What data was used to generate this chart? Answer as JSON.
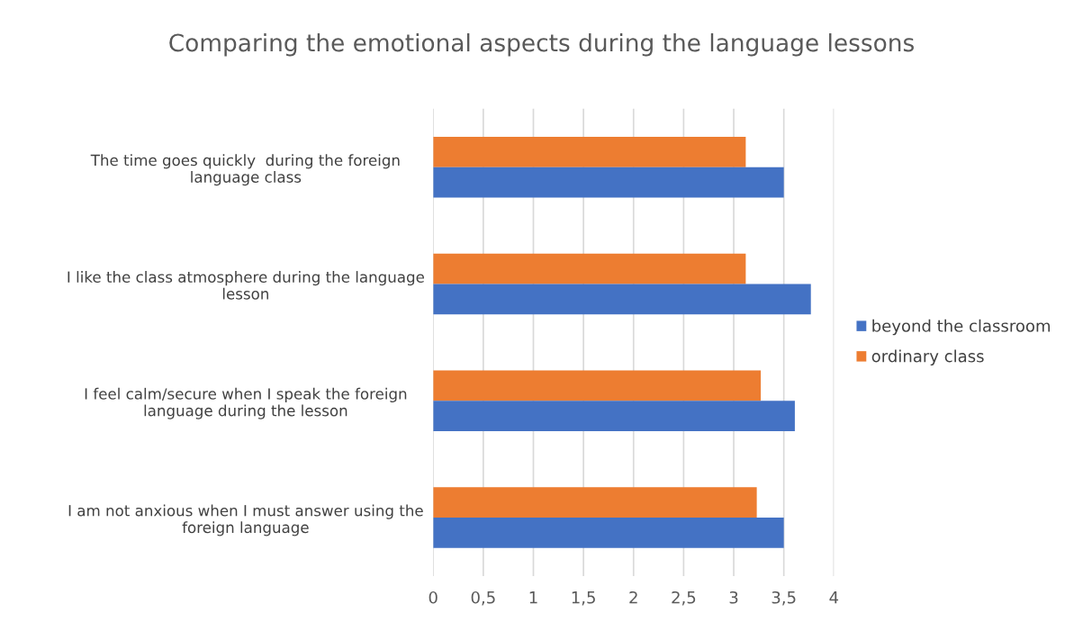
{
  "chart_data": {
    "type": "bar",
    "orientation": "horizontal",
    "title": "Comparing the emotional aspects during the language lessons",
    "categories": [
      "The time goes quickly  during the foreign\nlanguage class",
      "I like the class atmosphere during the language\nlesson",
      "I feel calm/secure when I speak the foreign\nlanguage during the lesson",
      "I am not anxious when I must answer using the\nforeign language"
    ],
    "series": [
      {
        "name": "ordinary class",
        "color": "#ed7d31",
        "values": [
          3.12,
          3.12,
          3.27,
          3.23
        ]
      },
      {
        "name": "beyond the classroom",
        "color": "#4472c4",
        "values": [
          3.5,
          3.77,
          3.61,
          3.5
        ]
      }
    ],
    "xlim": [
      0,
      4
    ],
    "xticks": [
      0,
      {
        "value": 0.5,
        "label": "0,5"
      },
      1,
      {
        "value": 1.5,
        "label": "1,5"
      },
      2,
      {
        "value": 2.5,
        "label": "2,5"
      },
      3,
      {
        "value": 3.5,
        "label": "3,5"
      },
      4
    ],
    "grid": "x",
    "legend": "right"
  }
}
